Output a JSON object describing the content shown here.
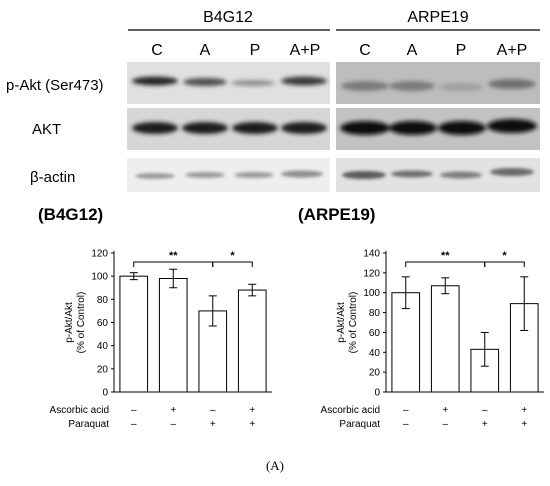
{
  "blot": {
    "cell_lines": [
      "B4G12",
      "ARPE19"
    ],
    "lanes": [
      "C",
      "A",
      "P",
      "A+P"
    ],
    "rows": [
      "p-Akt (Ser473)",
      "AKT",
      "β-actin"
    ]
  },
  "chart_data": [
    {
      "type": "bar",
      "title": "(B4G12)",
      "ylabel": "p-Akt/Akt\n(% of Control)",
      "ylim": [
        0,
        120
      ],
      "yticks": [
        0,
        20,
        40,
        60,
        80,
        100,
        120
      ],
      "categories": [
        "C",
        "A",
        "P",
        "A+P"
      ],
      "values": [
        100,
        98,
        70,
        88
      ],
      "errors": [
        3,
        8,
        13,
        5
      ],
      "significance": [
        {
          "from": 0,
          "to": 2,
          "label": "**"
        },
        {
          "from": 2,
          "to": 3,
          "label": "*"
        }
      ]
    },
    {
      "type": "bar",
      "title": "(ARPE19)",
      "ylabel": "p-Akt/Akt\n(% of Control)",
      "ylim": [
        0,
        140
      ],
      "yticks": [
        0,
        20,
        40,
        60,
        80,
        100,
        120,
        140
      ],
      "categories": [
        "C",
        "A",
        "P",
        "A+P"
      ],
      "values": [
        100,
        107,
        43,
        89
      ],
      "errors": [
        16,
        8,
        17,
        27
      ],
      "significance": [
        {
          "from": 0,
          "to": 2,
          "label": "**"
        },
        {
          "from": 2,
          "to": 3,
          "label": "*"
        }
      ]
    }
  ],
  "conditions": {
    "labels": [
      "Ascorbic acid",
      "Paraquat"
    ],
    "ascorbic": [
      "–",
      "+",
      "–",
      "+"
    ],
    "paraquat": [
      "–",
      "–",
      "+",
      "+"
    ]
  },
  "caption": "(A)"
}
